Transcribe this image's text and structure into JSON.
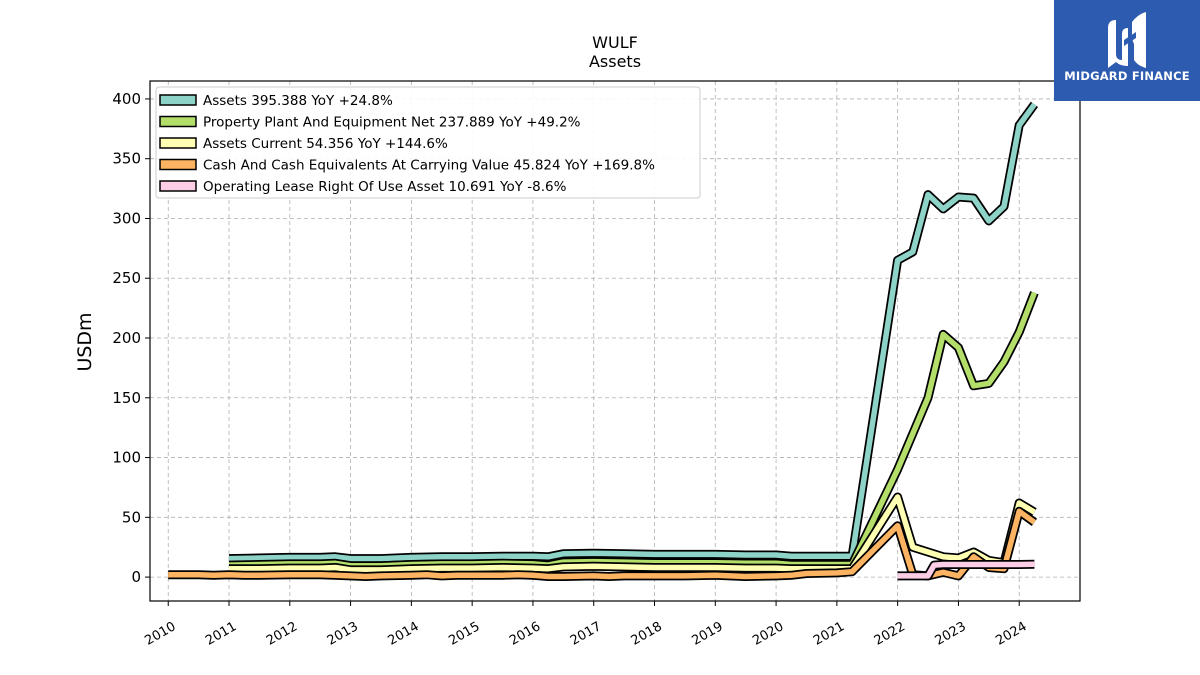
{
  "brand": {
    "name": "MIDGARD FINANCE",
    "logo_icon": "midgard-logo-icon",
    "color": "#2d5bb0"
  },
  "chart_data": {
    "type": "area",
    "title": "WULF",
    "subtitle": "Assets",
    "ylabel": "USDm",
    "xlabel": "",
    "ylim": [
      -20,
      415
    ],
    "xlim": [
      2009.7,
      2025.0
    ],
    "yticks": [
      0,
      50,
      100,
      150,
      200,
      250,
      300,
      350,
      400
    ],
    "xticks": [
      "2010",
      "2011",
      "2012",
      "2013",
      "2014",
      "2015",
      "2016",
      "2017",
      "2018",
      "2019",
      "2020",
      "2021",
      "2022",
      "2023",
      "2024"
    ],
    "grid": true,
    "legend_position": "top-left",
    "series": [
      {
        "name": "Assets",
        "legend": "Assets  395.388 YoY +24.8%",
        "color": "#8dd3c7",
        "points": [
          [
            2011.0,
            15.5
          ],
          [
            2011.5,
            16
          ],
          [
            2012.0,
            16.5
          ],
          [
            2012.5,
            16.5
          ],
          [
            2012.75,
            17
          ],
          [
            2013.0,
            15.5
          ],
          [
            2013.5,
            15.5
          ],
          [
            2014.0,
            16.5
          ],
          [
            2014.5,
            17
          ],
          [
            2015.0,
            17
          ],
          [
            2015.5,
            17.5
          ],
          [
            2016.0,
            17.5
          ],
          [
            2016.25,
            17
          ],
          [
            2016.5,
            19.5
          ],
          [
            2017.0,
            20
          ],
          [
            2017.5,
            19.5
          ],
          [
            2018.0,
            19
          ],
          [
            2018.5,
            19
          ],
          [
            2019.0,
            19
          ],
          [
            2019.5,
            18.5
          ],
          [
            2020.0,
            18.5
          ],
          [
            2020.25,
            17.5
          ],
          [
            2021.25,
            17.5
          ],
          [
            2022.0,
            265
          ],
          [
            2022.25,
            272
          ],
          [
            2022.5,
            320
          ],
          [
            2022.75,
            308
          ],
          [
            2023.0,
            318
          ],
          [
            2023.25,
            317
          ],
          [
            2023.5,
            298
          ],
          [
            2023.75,
            310
          ],
          [
            2024.0,
            378
          ],
          [
            2024.25,
            395.4
          ]
        ]
      },
      {
        "name": "Property Plant And Equipment Net",
        "legend": "Property Plant And Equipment Net  237.889 YoY +49.2%",
        "color": "#b3de69",
        "points": [
          [
            2011.0,
            10
          ],
          [
            2011.5,
            10.5
          ],
          [
            2012.0,
            11
          ],
          [
            2012.5,
            11
          ],
          [
            2012.75,
            11.5
          ],
          [
            2013.0,
            9.5
          ],
          [
            2013.5,
            9.5
          ],
          [
            2014.0,
            10.5
          ],
          [
            2014.5,
            11
          ],
          [
            2015.0,
            11
          ],
          [
            2015.5,
            11.5
          ],
          [
            2016.0,
            11
          ],
          [
            2016.25,
            10
          ],
          [
            2016.5,
            12.5
          ],
          [
            2017.0,
            13
          ],
          [
            2017.5,
            12.5
          ],
          [
            2018.0,
            12
          ],
          [
            2018.5,
            12
          ],
          [
            2019.0,
            12
          ],
          [
            2019.5,
            11.5
          ],
          [
            2020.0,
            11.5
          ],
          [
            2020.25,
            10.5
          ],
          [
            2021.25,
            10.5
          ],
          [
            2022.0,
            90
          ],
          [
            2022.5,
            150
          ],
          [
            2022.75,
            203
          ],
          [
            2023.0,
            192
          ],
          [
            2023.25,
            160
          ],
          [
            2023.5,
            162
          ],
          [
            2023.75,
            180
          ],
          [
            2024.0,
            205
          ],
          [
            2024.25,
            237.9
          ]
        ]
      },
      {
        "name": "Assets Current",
        "legend": "Assets Current  54.356 YoY +144.6%",
        "color": "#ffffb3",
        "points": [
          [
            2011.0,
            7
          ],
          [
            2011.5,
            7
          ],
          [
            2012.0,
            7.5
          ],
          [
            2012.5,
            7.5
          ],
          [
            2012.75,
            8
          ],
          [
            2013.0,
            6
          ],
          [
            2013.5,
            6
          ],
          [
            2014.0,
            7
          ],
          [
            2014.5,
            7.5
          ],
          [
            2015.0,
            7.5
          ],
          [
            2015.5,
            8
          ],
          [
            2016.0,
            7.5
          ],
          [
            2016.25,
            7
          ],
          [
            2016.5,
            8.5
          ],
          [
            2017.0,
            9
          ],
          [
            2017.5,
            8.5
          ],
          [
            2018.0,
            8
          ],
          [
            2018.5,
            8
          ],
          [
            2019.0,
            8
          ],
          [
            2019.5,
            7.5
          ],
          [
            2020.0,
            7.5
          ],
          [
            2020.25,
            7
          ],
          [
            2021.25,
            7
          ],
          [
            2022.0,
            67
          ],
          [
            2022.25,
            25
          ],
          [
            2022.5,
            21
          ],
          [
            2022.75,
            17
          ],
          [
            2023.0,
            16
          ],
          [
            2023.25,
            21
          ],
          [
            2023.5,
            14
          ],
          [
            2023.75,
            12
          ],
          [
            2024.0,
            62
          ],
          [
            2024.25,
            54.4
          ]
        ]
      },
      {
        "name": "Cash And Cash Equivalents At Carrying Value",
        "legend": "Cash And Cash Equivalents At Carrying Value  45.824 YoY +169.8%",
        "color": "#fdb462",
        "points": [
          [
            2010.0,
            2
          ],
          [
            2010.5,
            2
          ],
          [
            2010.75,
            1.5
          ],
          [
            2011.0,
            2
          ],
          [
            2011.25,
            1.5
          ],
          [
            2011.5,
            1.5
          ],
          [
            2012.0,
            2
          ],
          [
            2012.5,
            2
          ],
          [
            2012.75,
            1.5
          ],
          [
            2013.0,
            1
          ],
          [
            2013.25,
            0.5
          ],
          [
            2013.5,
            1
          ],
          [
            2014.0,
            1.5
          ],
          [
            2014.25,
            2
          ],
          [
            2014.5,
            1
          ],
          [
            2014.75,
            1.5
          ],
          [
            2015.0,
            1.5
          ],
          [
            2015.5,
            1.5
          ],
          [
            2015.75,
            2
          ],
          [
            2016.0,
            1.5
          ],
          [
            2016.25,
            0.5
          ],
          [
            2016.5,
            0.5
          ],
          [
            2017.0,
            1
          ],
          [
            2017.25,
            0.5
          ],
          [
            2017.5,
            1
          ],
          [
            2018.0,
            1
          ],
          [
            2018.5,
            1
          ],
          [
            2019.0,
            1.5
          ],
          [
            2019.25,
            1
          ],
          [
            2019.5,
            0.5
          ],
          [
            2020.0,
            1
          ],
          [
            2020.25,
            1.5
          ],
          [
            2020.5,
            3
          ],
          [
            2021.0,
            3.5
          ],
          [
            2021.25,
            4.5
          ],
          [
            2022.0,
            43
          ],
          [
            2022.25,
            2
          ],
          [
            2022.5,
            1
          ],
          [
            2022.75,
            4
          ],
          [
            2023.0,
            1
          ],
          [
            2023.25,
            17
          ],
          [
            2023.5,
            8
          ],
          [
            2023.75,
            7
          ],
          [
            2024.0,
            55
          ],
          [
            2024.25,
            45.8
          ]
        ]
      },
      {
        "name": "Operating Lease Right Of Use Asset",
        "legend": "Operating Lease Right Of Use Asset  10.691 YoY -8.6%",
        "color": "#fccde5",
        "points": [
          [
            2022.0,
            1
          ],
          [
            2022.25,
            1
          ],
          [
            2022.5,
            1
          ],
          [
            2022.6,
            10
          ],
          [
            2022.75,
            10.5
          ],
          [
            2023.0,
            10.5
          ],
          [
            2023.25,
            10.5
          ],
          [
            2023.5,
            10.5
          ],
          [
            2023.75,
            10.5
          ],
          [
            2024.0,
            10.5
          ],
          [
            2024.25,
            10.7
          ]
        ]
      }
    ]
  }
}
